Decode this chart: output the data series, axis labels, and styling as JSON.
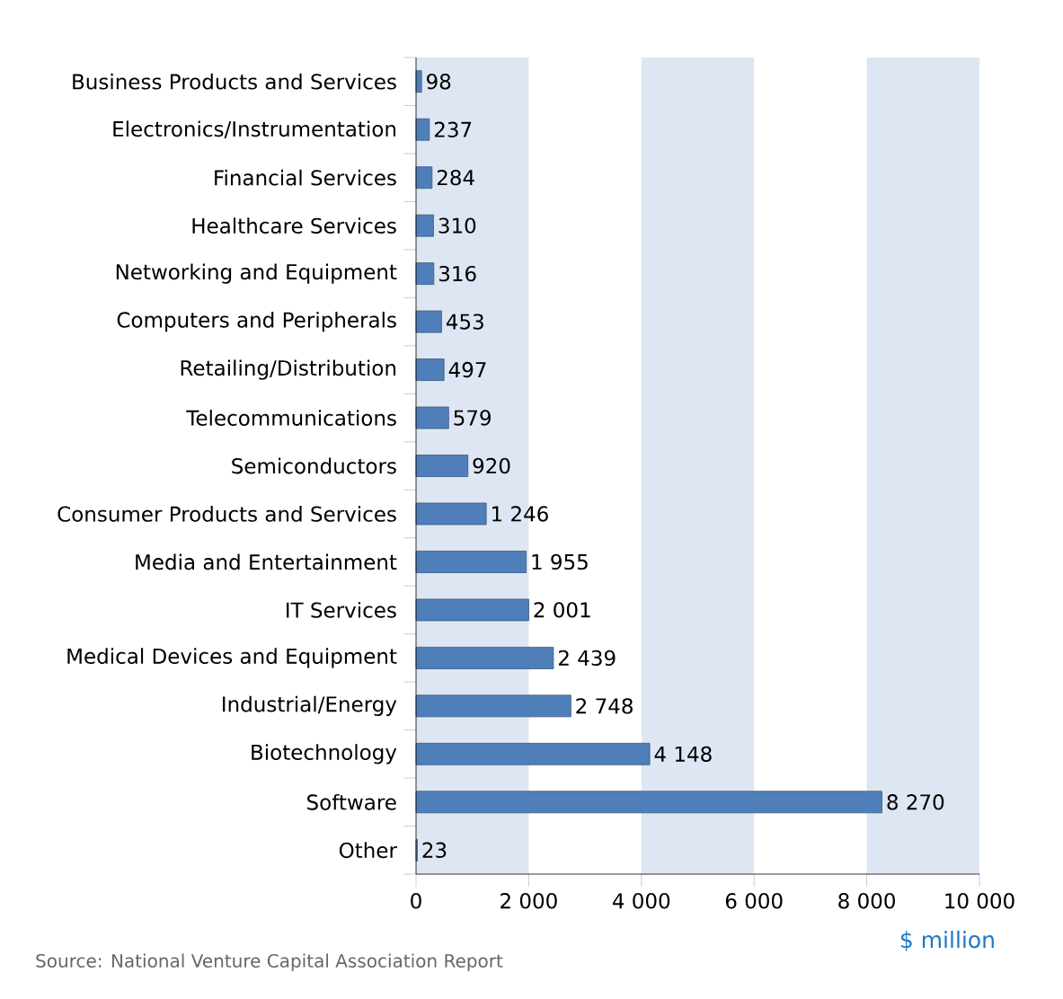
{
  "chart_data": {
    "type": "bar",
    "orientation": "horizontal",
    "xlabel": "$ million",
    "categories": [
      "Business Products and Services",
      "Electronics/Instrumentation",
      "Financial Services",
      "Healthcare Services",
      "Networking and Equipment",
      "Computers and Peripherals",
      "Retailing/Distribution",
      "Telecommunications",
      "Semiconductors",
      "Consumer Products and Services",
      "Media and Entertainment",
      "IT Services",
      "Medical Devices and Equipment",
      "Industrial/Energy",
      "Biotechnology",
      "Software",
      "Other"
    ],
    "values": [
      98,
      237,
      284,
      310,
      316,
      453,
      497,
      579,
      920,
      1246,
      1955,
      2001,
      2439,
      2748,
      4148,
      8270,
      23
    ],
    "value_labels": [
      "98",
      "237",
      "284",
      "310",
      "316",
      "453",
      "497",
      "579",
      "920",
      "1 246",
      "1 955",
      "2 001",
      "2 439",
      "2 748",
      "4 148",
      "8 270",
      "23"
    ],
    "color": "#4f7fb8",
    "xlim": [
      0,
      10000
    ],
    "xticks": [
      0,
      {
        "value": 2000,
        "label": "2 000"
      },
      {
        "value": 4000,
        "label": "4 000"
      },
      {
        "value": 6000,
        "label": "6 000"
      },
      {
        "value": 8000,
        "label": "8 000"
      },
      {
        "value": 10000,
        "label": "10 000"
      }
    ],
    "bands": [
      {
        "axis": "x",
        "from": 0,
        "to": 2000,
        "color": "#dfe6f3"
      },
      {
        "axis": "x",
        "from": 4000,
        "to": 6000,
        "color": "#dfe6f3"
      },
      {
        "axis": "x",
        "from": 8000,
        "to": 10000,
        "color": "#dfe6f3"
      }
    ],
    "annotations": [
      "Source: National Venture Capital Association Report"
    ],
    "grid": false
  }
}
